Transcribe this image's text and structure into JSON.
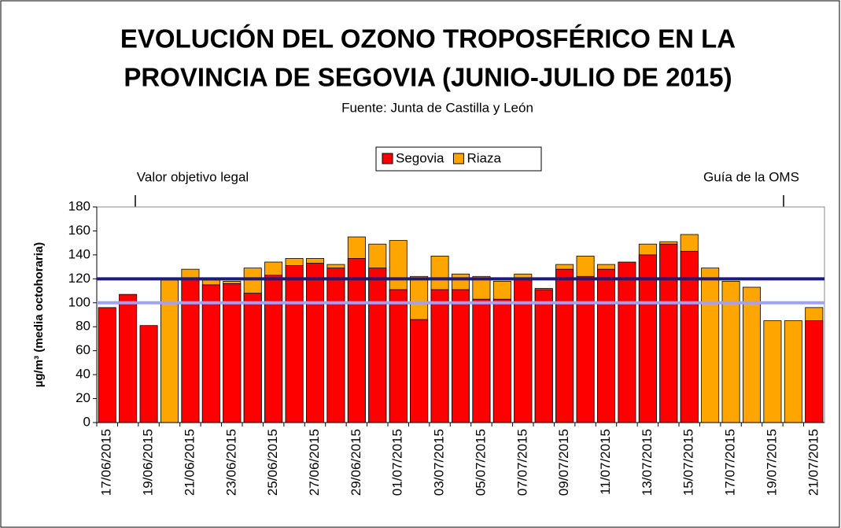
{
  "chart_data": {
    "type": "overlap_bar",
    "title": [
      "EVOLUCIÓN DEL OZONO TROPOSFÉRICO EN LA",
      "PROVINCIA DE SEGOVIA (JUNIO-JULIO DE 2015)"
    ],
    "subtitle": "Fuente: Junta de Castilla y León",
    "y_label": "µg/m³ (media octohoraria)",
    "categories": [
      "17/06/2015",
      null,
      "19/06/2015",
      null,
      "21/06/2015",
      null,
      "23/06/2015",
      null,
      "25/06/2015",
      null,
      "27/06/2015",
      null,
      "29/06/2015",
      null,
      "01/07/2015",
      null,
      "03/07/2015",
      null,
      "05/07/2015",
      null,
      "07/07/2015",
      null,
      "09/07/2015",
      null,
      "11/07/2015",
      null,
      "13/07/2015",
      null,
      "15/07/2015",
      null,
      "17/07/2015",
      null,
      "19/07/2015",
      null,
      "21/07/2015"
    ],
    "series": [
      {
        "name": "Segovia",
        "color": "#ff0000",
        "values": [
          96,
          107,
          81,
          null,
          120,
          115,
          116,
          108,
          123,
          131,
          133,
          129,
          137,
          129,
          111,
          86,
          111,
          111,
          103,
          103,
          120,
          111,
          128,
          122,
          128,
          134,
          140,
          149,
          143,
          null,
          null,
          null,
          null,
          null,
          85
        ]
      },
      {
        "name": "Riaza",
        "color": "#ffa500",
        "values": [
          null,
          null,
          null,
          119,
          128,
          119,
          118,
          129,
          134,
          137,
          137,
          132,
          155,
          149,
          152,
          122,
          139,
          124,
          122,
          118,
          124,
          112,
          132,
          139,
          132,
          null,
          149,
          151,
          157,
          129,
          118,
          113,
          85,
          85,
          96
        ]
      }
    ],
    "reference_lines": [
      {
        "label": "Valor objetivo legal",
        "value": 120,
        "color": "#1a1a80"
      },
      {
        "label": "Guía de la OMS",
        "value": 100,
        "color": "#a0a0ff"
      }
    ],
    "ylim": [
      0,
      180
    ],
    "yticks": [
      0,
      20,
      40,
      60,
      80,
      100,
      120,
      140,
      160,
      180
    ],
    "grid": false
  }
}
